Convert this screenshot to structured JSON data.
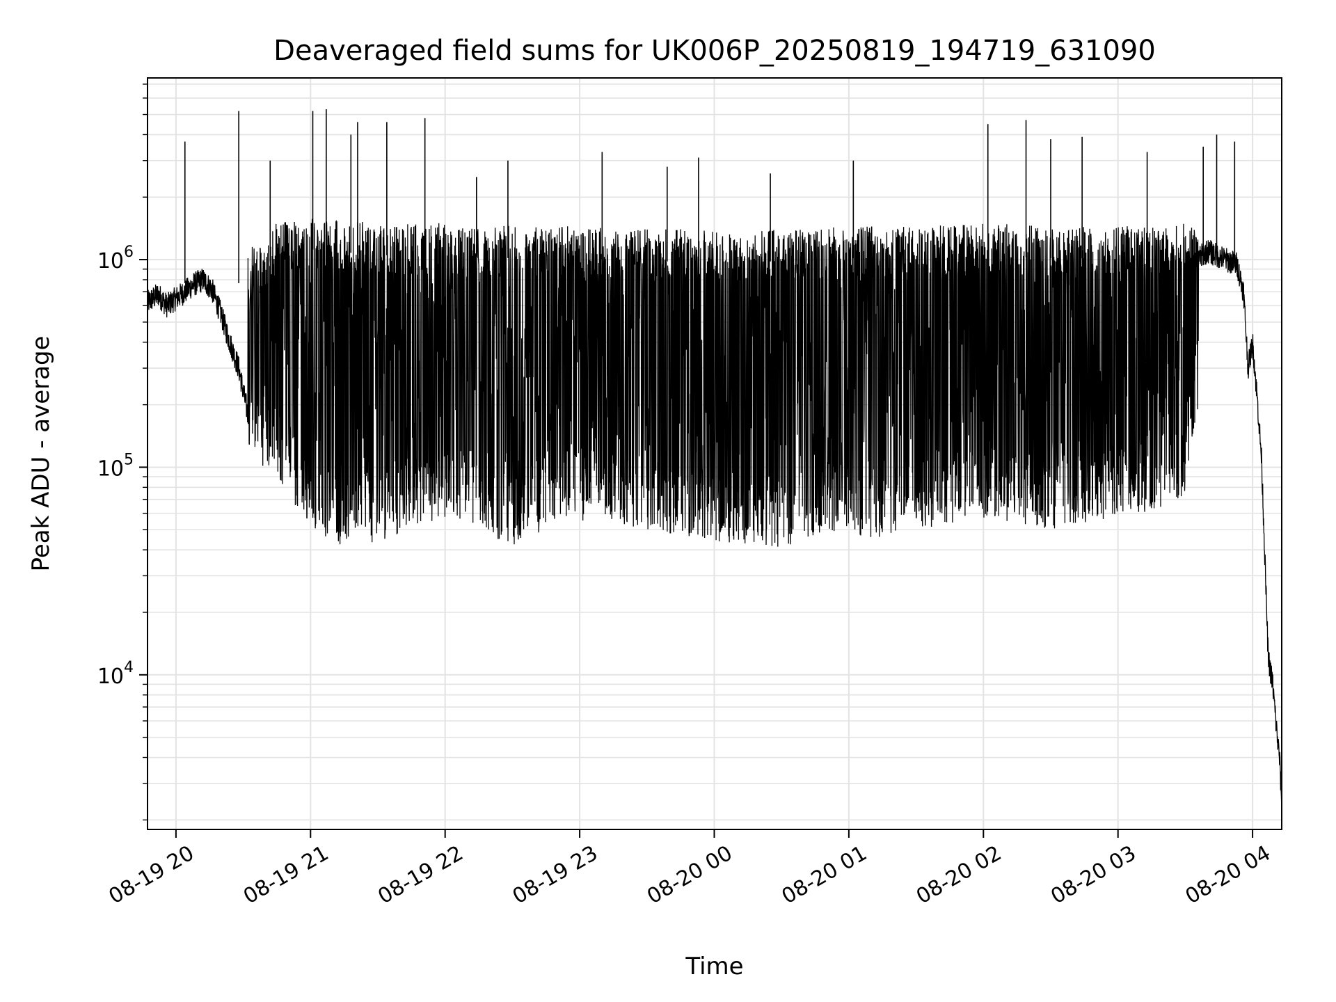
{
  "chart_data": {
    "type": "line",
    "title": "Deaveraged field sums for UK006P_20250819_194719_631090",
    "xlabel": "Time",
    "ylabel": "Peak ADU - average",
    "yscale": "log",
    "xlim": [
      "2025-08-19 19:47:19",
      "2025-08-20 04:13:00"
    ],
    "ylim": [
      1800,
      7500000
    ],
    "grid": true,
    "x_ticks": [
      "08-19 20",
      "08-19 21",
      "08-19 22",
      "08-19 23",
      "08-20 00",
      "08-20 01",
      "08-20 02",
      "08-20 03",
      "08-20 04"
    ],
    "y_ticks": [
      {
        "base": "10",
        "exp": "4",
        "value": 10000
      },
      {
        "base": "10",
        "exp": "5",
        "value": 100000
      },
      {
        "base": "10",
        "exp": "6",
        "value": 1000000
      }
    ],
    "series": [
      {
        "color": "#000000",
        "points": [
          [
            "2025-08-19 19:47:19",
            620000
          ],
          [
            "2025-08-19 19:52:00",
            680000
          ],
          [
            "2025-08-19 19:56:00",
            600000
          ],
          [
            "2025-08-19 20:00:00",
            650000
          ],
          [
            "2025-08-19 20:04:00",
            700000
          ],
          [
            "2025-08-19 20:08:00",
            760000
          ],
          [
            "2025-08-19 20:12:00",
            800000
          ],
          [
            "2025-08-19 20:16:00",
            720000
          ],
          [
            "2025-08-19 20:20:00",
            550000
          ],
          [
            "2025-08-19 20:24:00",
            400000
          ],
          [
            "2025-08-19 20:28:00",
            300000
          ],
          [
            "2025-08-19 20:32:00",
            180000
          ],
          [
            "2025-08-19 20:36:00",
            400000
          ],
          [
            "2025-08-19 20:40:00",
            600000
          ],
          [
            "2025-08-19 20:48:00",
            900000
          ],
          [
            "2025-08-19 21:00:00",
            1000000
          ],
          [
            "2025-08-19 21:30:00",
            950000
          ],
          [
            "2025-08-19 22:00:00",
            1000000
          ],
          [
            "2025-08-19 22:30:00",
            950000
          ],
          [
            "2025-08-19 23:00:00",
            950000
          ],
          [
            "2025-08-19 23:30:00",
            900000
          ],
          [
            "2025-08-20 00:00:00",
            950000
          ],
          [
            "2025-08-20 00:30:00",
            900000
          ],
          [
            "2025-08-20 01:00:00",
            950000
          ],
          [
            "2025-08-20 01:30:00",
            900000
          ],
          [
            "2025-08-20 02:00:00",
            1000000
          ],
          [
            "2025-08-20 02:30:00",
            950000
          ],
          [
            "2025-08-20 03:00:00",
            950000
          ],
          [
            "2025-08-20 03:30:00",
            900000
          ],
          [
            "2025-08-20 03:40:00",
            1100000
          ],
          [
            "2025-08-20 03:48:00",
            1000000
          ],
          [
            "2025-08-20 03:53:00",
            950000
          ],
          [
            "2025-08-20 03:56:00",
            700000
          ],
          [
            "2025-08-20 03:58:00",
            300000
          ],
          [
            "2025-08-20 04:00:00",
            400000
          ],
          [
            "2025-08-20 04:02:00",
            220000
          ],
          [
            "2025-08-20 04:04:00",
            110000
          ],
          [
            "2025-08-20 04:06:00",
            25000
          ],
          [
            "2025-08-20 04:07:00",
            12000
          ],
          [
            "2025-08-20 04:09:00",
            9000
          ],
          [
            "2025-08-20 04:11:00",
            5000
          ],
          [
            "2025-08-20 04:12:00",
            4000
          ],
          [
            "2025-08-20 04:13:00",
            2500
          ]
        ],
        "band_min": [
          [
            "2025-08-19 20:32:00",
            110000
          ],
          [
            "2025-08-19 20:45:00",
            90000
          ],
          [
            "2025-08-19 20:55:00",
            60000
          ],
          [
            "2025-08-19 21:10:00",
            42000
          ],
          [
            "2025-08-19 21:30:00",
            42000
          ],
          [
            "2025-08-19 21:50:00",
            55000
          ],
          [
            "2025-08-19 22:10:00",
            55000
          ],
          [
            "2025-08-19 22:30:00",
            40000
          ],
          [
            "2025-08-19 22:50:00",
            55000
          ],
          [
            "2025-08-19 23:10:00",
            55000
          ],
          [
            "2025-08-19 23:30:00",
            50000
          ],
          [
            "2025-08-19 23:50:00",
            45000
          ],
          [
            "2025-08-20 00:10:00",
            42000
          ],
          [
            "2025-08-20 00:30:00",
            40000
          ],
          [
            "2025-08-20 00:50:00",
            50000
          ],
          [
            "2025-08-20 01:10:00",
            45000
          ],
          [
            "2025-08-20 01:30:00",
            50000
          ],
          [
            "2025-08-20 01:50:00",
            55000
          ],
          [
            "2025-08-20 02:10:00",
            55000
          ],
          [
            "2025-08-20 02:30:00",
            50000
          ],
          [
            "2025-08-20 02:50:00",
            55000
          ],
          [
            "2025-08-20 03:10:00",
            60000
          ],
          [
            "2025-08-20 03:30:00",
            70000
          ],
          [
            "2025-08-20 03:36:00",
            200000
          ]
        ],
        "band_max": [
          [
            "2025-08-19 20:32:00",
            1100000
          ],
          [
            "2025-08-19 20:45:00",
            1500000
          ],
          [
            "2025-08-19 21:00:00",
            1600000
          ],
          [
            "2025-08-19 21:30:00",
            1500000
          ],
          [
            "2025-08-19 22:00:00",
            1500000
          ],
          [
            "2025-08-19 22:30:00",
            1450000
          ],
          [
            "2025-08-19 23:00:00",
            1450000
          ],
          [
            "2025-08-19 23:30:00",
            1400000
          ],
          [
            "2025-08-20 00:00:00",
            1400000
          ],
          [
            "2025-08-20 00:30:00",
            1400000
          ],
          [
            "2025-08-20 01:00:00",
            1450000
          ],
          [
            "2025-08-20 01:30:00",
            1450000
          ],
          [
            "2025-08-20 02:00:00",
            1500000
          ],
          [
            "2025-08-20 02:30:00",
            1450000
          ],
          [
            "2025-08-20 03:00:00",
            1450000
          ],
          [
            "2025-08-20 03:36:00",
            1500000
          ],
          [
            "2025-08-20 03:52:00",
            1400000
          ]
        ],
        "spikes": [
          [
            "2025-08-19 20:04:00",
            3700000
          ],
          [
            "2025-08-19 20:28:00",
            5200000
          ],
          [
            "2025-08-19 20:42:00",
            3000000
          ],
          [
            "2025-08-19 21:01:00",
            5200000
          ],
          [
            "2025-08-19 21:07:00",
            5300000
          ],
          [
            "2025-08-19 21:18:00",
            4000000
          ],
          [
            "2025-08-19 21:21:00",
            4600000
          ],
          [
            "2025-08-19 21:34:00",
            4600000
          ],
          [
            "2025-08-19 21:51:00",
            4800000
          ],
          [
            "2025-08-19 22:14:00",
            2500000
          ],
          [
            "2025-08-19 22:28:00",
            3000000
          ],
          [
            "2025-08-19 23:10:00",
            3300000
          ],
          [
            "2025-08-19 23:39:00",
            2800000
          ],
          [
            "2025-08-19 23:53:00",
            3100000
          ],
          [
            "2025-08-20 00:25:00",
            2600000
          ],
          [
            "2025-08-20 01:02:00",
            3000000
          ],
          [
            "2025-08-20 02:02:00",
            4500000
          ],
          [
            "2025-08-20 02:19:00",
            4700000
          ],
          [
            "2025-08-20 02:30:00",
            3800000
          ],
          [
            "2025-08-20 02:44:00",
            3900000
          ],
          [
            "2025-08-20 03:13:00",
            3300000
          ],
          [
            "2025-08-20 03:38:00",
            3500000
          ],
          [
            "2025-08-20 03:44:00",
            4000000
          ],
          [
            "2025-08-20 03:52:00",
            3700000
          ]
        ]
      }
    ]
  }
}
